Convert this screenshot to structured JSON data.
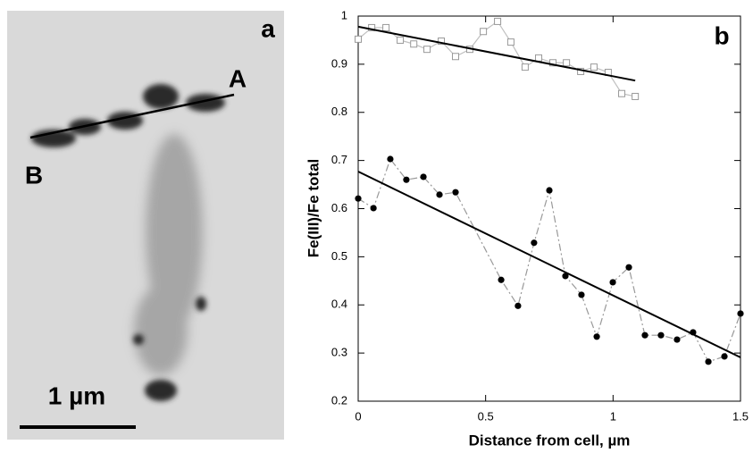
{
  "image_panel": {
    "label": "a",
    "point_a": "A",
    "point_b": "B",
    "scale_bar": "1 µm"
  },
  "chart_data": {
    "type": "line",
    "panel_label": "b",
    "x_label": "Distance from cell, µm",
    "y_label": "Fe(III)/Fe total",
    "xlim": [
      0,
      1.5
    ],
    "xticks": [
      0,
      0.5,
      1,
      1.5
    ],
    "ylim": [
      0.2,
      1
    ],
    "yticks": [
      0.2,
      0.3,
      0.4,
      0.5,
      0.6,
      0.7,
      0.8,
      0.9,
      1
    ],
    "series": [
      {
        "color": "#999999",
        "marker": "square",
        "line_color": "#c0c0c0",
        "dash": "solid",
        "x": [
          0,
          0.053,
          0.109,
          0.165,
          0.218,
          0.27,
          0.326,
          0.382,
          0.438,
          0.491,
          0.547,
          0.599,
          0.655,
          0.708,
          0.764,
          0.817,
          0.873,
          0.925,
          0.981,
          1.034,
          1.087
        ],
        "values": [
          0.952,
          0.976,
          0.976,
          0.95,
          0.942,
          0.931,
          0.948,
          0.916,
          0.931,
          0.968,
          0.989,
          0.946,
          0.894,
          0.913,
          0.903,
          0.903,
          0.885,
          0.894,
          0.883,
          0.839,
          0.833
        ]
      },
      {
        "color": "#000000",
        "marker": "circle",
        "line_color": "#999999",
        "dash": "dashdot",
        "x": [
          0,
          0.06,
          0.126,
          0.189,
          0.256,
          0.319,
          0.382,
          0.561,
          0.627,
          0.69,
          0.75,
          0.813,
          0.876,
          0.936,
          0.999,
          1.062,
          1.125,
          1.188,
          1.251,
          1.314,
          1.374,
          1.437,
          1.5
        ],
        "values": [
          0.621,
          0.601,
          0.703,
          0.66,
          0.666,
          0.629,
          0.634,
          0.452,
          0.398,
          0.529,
          0.638,
          0.46,
          0.421,
          0.334,
          0.447,
          0.478,
          0.337,
          0.337,
          0.328,
          0.343,
          0.282,
          0.293,
          0.382
        ]
      },
      {
        "color": "#000000",
        "marker": "none",
        "line_color": "#000000",
        "dash": "solid",
        "x": [
          0,
          1.087
        ],
        "values": [
          0.978,
          0.866
        ]
      },
      {
        "color": "#000000",
        "marker": "none",
        "line_color": "#000000",
        "dash": "solid",
        "x": [
          0,
          1.5
        ],
        "values": [
          0.677,
          0.291
        ]
      }
    ]
  }
}
